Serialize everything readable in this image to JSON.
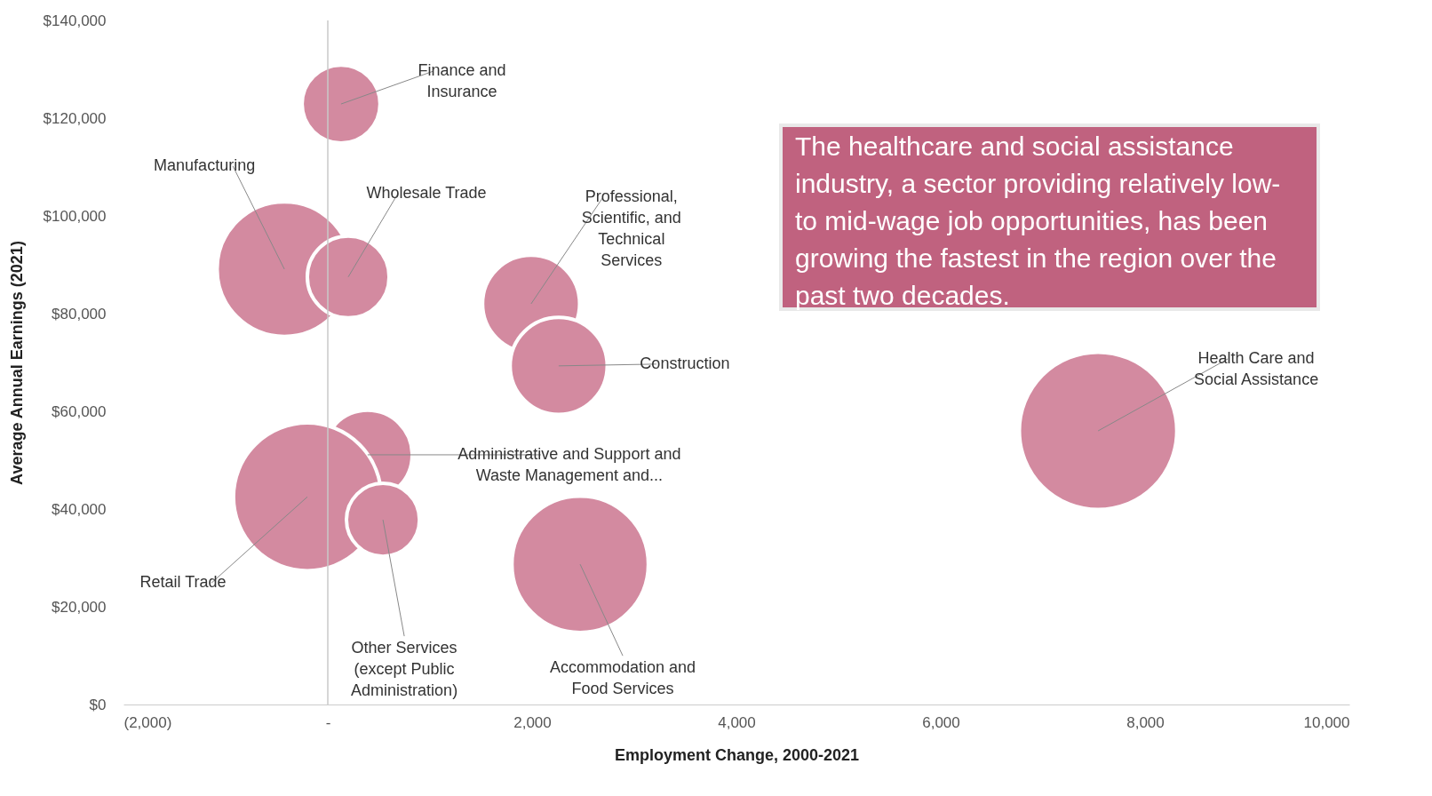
{
  "chart_data": {
    "type": "bubble",
    "xlabel": "Employment Change, 2000-2021",
    "ylabel": "Average Annual Earnings (2021)",
    "x": [
      130,
      -425,
      200,
      1990,
      2260,
      7540,
      390,
      -200,
      540,
      2470
    ],
    "values": [
      122900,
      89100,
      87500,
      82000,
      69300,
      56000,
      51100,
      42500,
      37800,
      28700
    ],
    "sizes": [
      0.245,
      0.73,
      0.27,
      0.38,
      0.38,
      1,
      0.32,
      0.88,
      0.215,
      0.75
    ],
    "color": "#d38aa0",
    "xlim": [
      -2000,
      10000
    ],
    "xticks": [
      {
        "value": -2000,
        "label": "(2,000)"
      },
      {
        "value": 0,
        "label": "-"
      },
      {
        "value": 2000,
        "label": "2,000"
      },
      {
        "value": 4000,
        "label": "4,000"
      },
      {
        "value": 6000,
        "label": "6,000"
      },
      {
        "value": 8000,
        "label": "8,000"
      },
      {
        "value": 10000,
        "label": "10,000"
      }
    ],
    "ylim": [
      0,
      140000
    ],
    "yticks": [
      {
        "value": 0,
        "label": "$0"
      },
      {
        "value": 20000,
        "label": "$20,000"
      },
      {
        "value": 40000,
        "label": "$40,000"
      },
      {
        "value": 60000,
        "label": "$60,000"
      },
      {
        "value": 80000,
        "label": "$80,000"
      },
      {
        "value": 100000,
        "label": "$100,000"
      },
      {
        "value": 120000,
        "label": "$120,000"
      },
      {
        "value": 140000,
        "label": "$140,000"
      }
    ],
    "grid": false,
    "ref_lines": [
      {
        "axis": "x",
        "value": 0,
        "label": null,
        "color": "#c8c8c8"
      }
    ],
    "annotations": [
      {
        "text": "Finance and\nInsurance",
        "x": 130,
        "y": 122900
      },
      {
        "text": "Manufacturing",
        "x": -425,
        "y": 89100
      },
      {
        "text": "Wholesale Trade",
        "x": 200,
        "y": 87500
      },
      {
        "text": "Professional,\nScientific, and\nTechnical\nServices",
        "x": 1990,
        "y": 82000
      },
      {
        "text": "Construction",
        "x": 2260,
        "y": 69300
      },
      {
        "text": "Health Care and\nSocial Assistance",
        "x": 7540,
        "y": 56000
      },
      {
        "text": "Administrative and Support and\nWaste Management and...",
        "x": 390,
        "y": 51100
      },
      {
        "text": "Retail Trade",
        "x": -200,
        "y": 42500
      },
      {
        "text": "Other Services\n(except Public\nAdministration)",
        "x": 540,
        "y": 37800
      },
      {
        "text": "Accommodation and\nFood Services",
        "x": 2470,
        "y": 28700
      },
      "The healthcare and social assistance\nindustry, a sector providing relatively low-\nto mid-wage job opportunities, has been\ngrowing the fastest in the region over the\npast two decades."
    ]
  }
}
